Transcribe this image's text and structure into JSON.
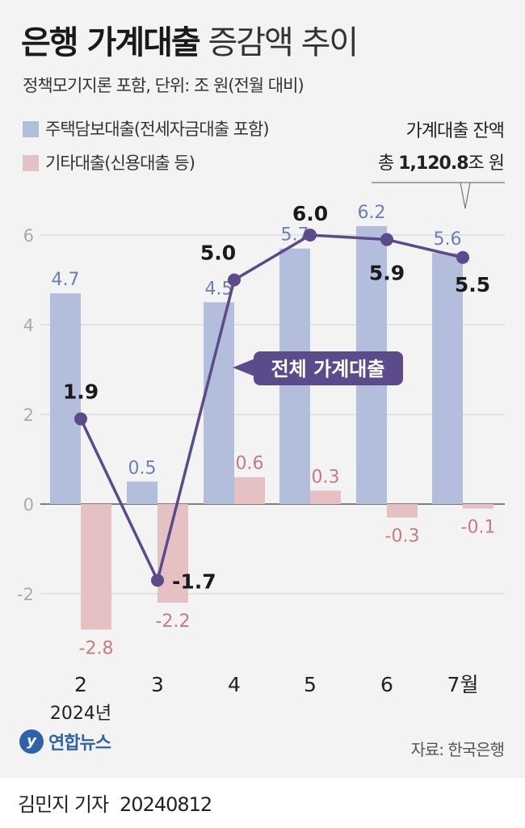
{
  "header": {
    "title_bold": "은행 가계대출",
    "title_light": "증감액 추이",
    "subtitle": "정책모기지론 포함, 단위: 조 원(전월 대비)"
  },
  "legend": {
    "mortgage": "주택담보대출(전세자금대출 포함)",
    "other": "기타대출(신용대출 등)"
  },
  "balance": {
    "line1": "가계대출 잔액",
    "prefix": "총 ",
    "value": "1,120.8",
    "suffix": "조 원"
  },
  "chart_data": {
    "type": "bar+line",
    "categories": [
      "2",
      "3",
      "4",
      "5",
      "6",
      "7월"
    ],
    "year_label": "2024년",
    "ylim": [
      -3,
      6.6
    ],
    "yticks": [
      -2,
      0,
      2,
      4,
      6
    ],
    "series": [
      {
        "name": "주택담보대출(전세자금대출 포함)",
        "type": "bar",
        "color": "#b3bedc",
        "label_color": "#6b7fb8",
        "values": [
          4.7,
          0.5,
          4.5,
          5.7,
          6.2,
          5.6
        ],
        "labels": [
          "4.7",
          "0.5",
          "4.5",
          "5.7",
          "6.2",
          "5.6"
        ]
      },
      {
        "name": "기타대출(신용대출 등)",
        "type": "bar",
        "color": "#e6c1c3",
        "label_color": "#c77b80",
        "values": [
          -2.8,
          -2.2,
          0.6,
          0.3,
          -0.3,
          -0.1
        ],
        "labels": [
          "-2.8",
          "-2.2",
          "0.6",
          "0.3",
          "-0.3",
          "-0.1"
        ]
      },
      {
        "name": "전체 가계대출",
        "type": "line",
        "color": "#5b4b8a",
        "values": [
          1.9,
          -1.7,
          5.0,
          6.0,
          5.9,
          5.5
        ],
        "labels": [
          "1.9",
          "-1.7",
          "5.0",
          "6.0",
          "5.9",
          "5.5"
        ]
      }
    ]
  },
  "footer": {
    "logo_mark": "y",
    "logo_name": "연합뉴스",
    "source": "자료: 한국은행",
    "reporter": "김민지 기자",
    "date": "20240812"
  }
}
